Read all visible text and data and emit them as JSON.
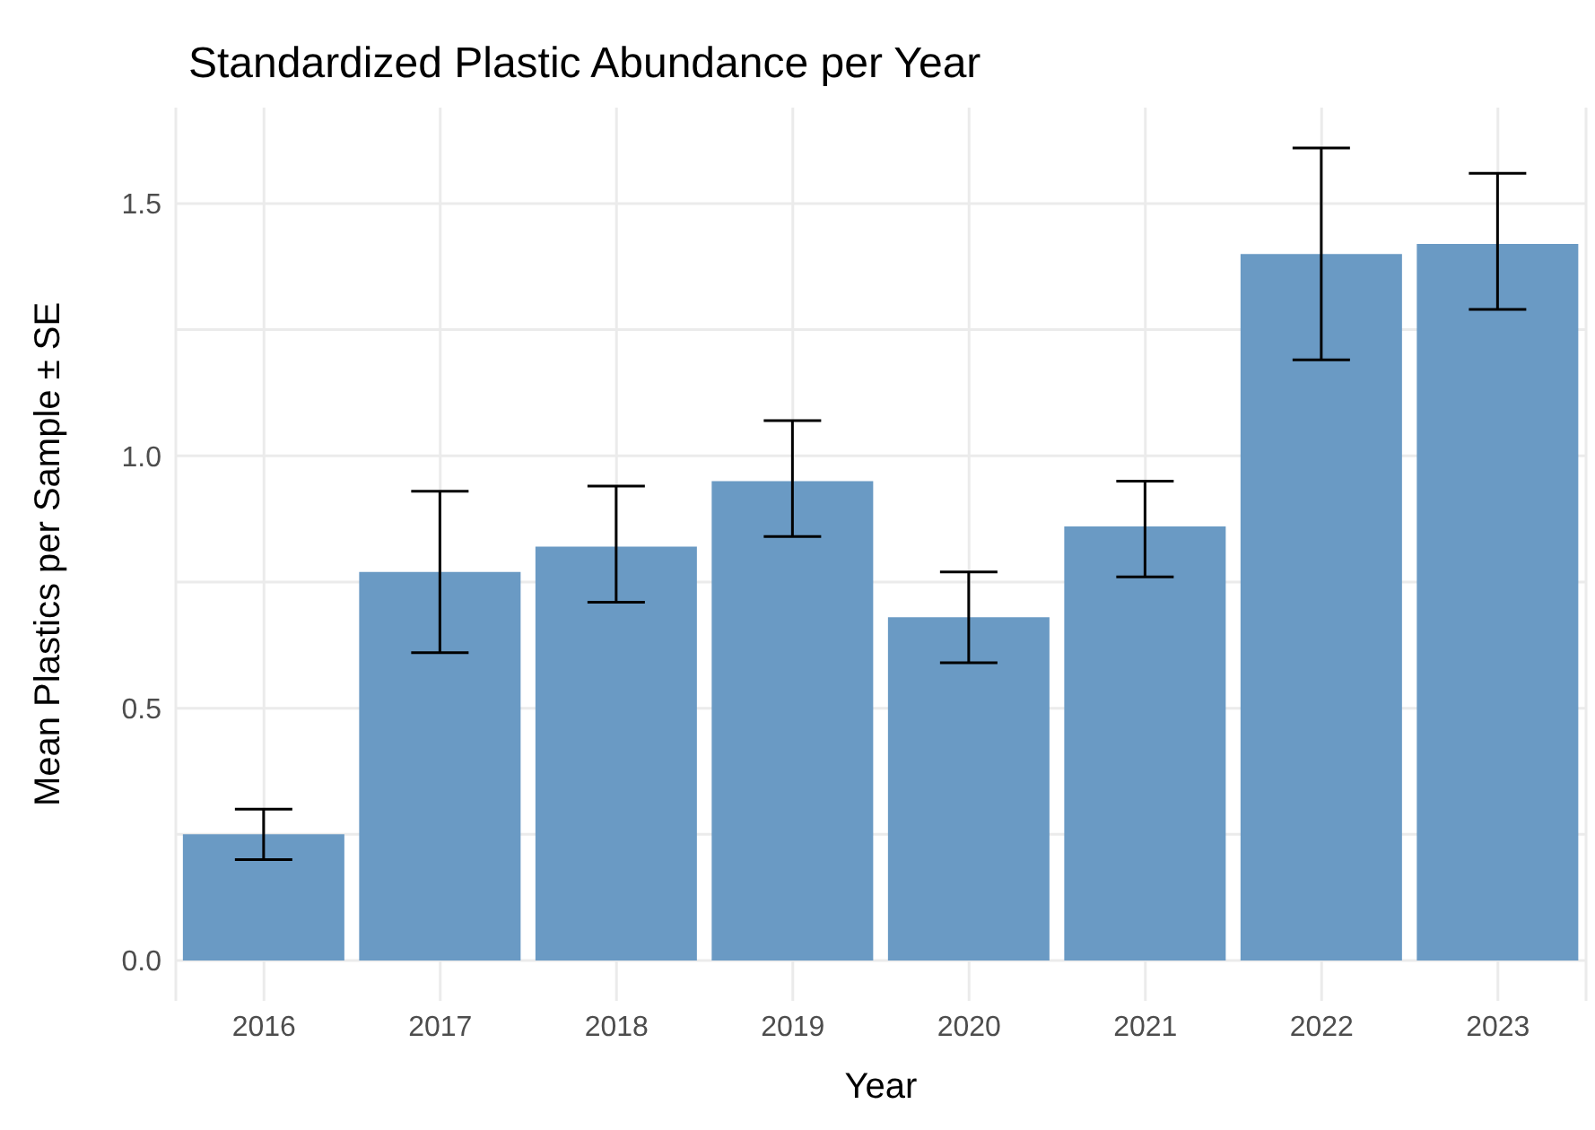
{
  "chart_data": {
    "type": "bar",
    "title": "Standardized Plastic Abundance per Year",
    "xlabel": "Year",
    "ylabel": "Mean Plastics per Sample ± SE",
    "categories": [
      "2016",
      "2017",
      "2018",
      "2019",
      "2020",
      "2021",
      "2022",
      "2023"
    ],
    "values": [
      0.25,
      0.77,
      0.82,
      0.95,
      0.68,
      0.86,
      1.4,
      1.42
    ],
    "errors": [
      [
        0.2,
        0.3
      ],
      [
        0.61,
        0.93
      ],
      [
        0.71,
        0.94
      ],
      [
        0.84,
        1.07
      ],
      [
        0.59,
        0.77
      ],
      [
        0.76,
        0.95
      ],
      [
        1.19,
        1.61
      ],
      [
        1.29,
        1.56
      ]
    ],
    "color": "#6a9ac4",
    "ylim": [
      -0.08,
      1.69
    ],
    "yticks": [
      {
        "value": 0,
        "label": "0.0"
      },
      {
        "value": 0.25,
        "label": null
      },
      0.5,
      {
        "value": 0.75,
        "label": null
      },
      {
        "value": 1,
        "label": "1.0"
      },
      {
        "value": 1.25,
        "label": null
      },
      1.5
    ],
    "grid": true
  }
}
